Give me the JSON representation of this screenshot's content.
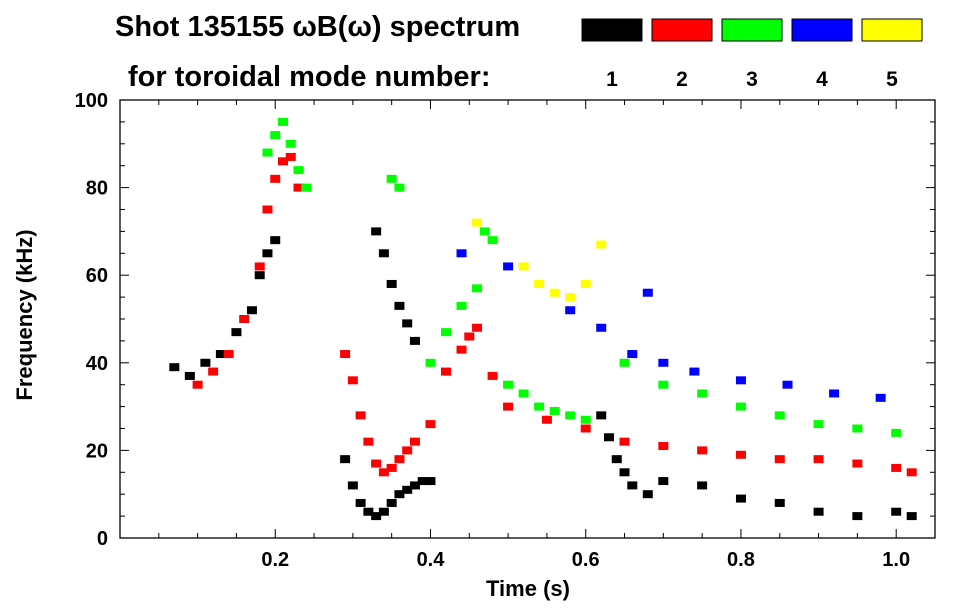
{
  "chart_data": {
    "type": "scatter",
    "title_line1": "Shot 135155 ωB(ω) spectrum",
    "title_line2": "for toroidal mode number:",
    "xlabel": "Time (s)",
    "ylabel": "Frequency (kHz)",
    "xlim": [
      0.0,
      1.05
    ],
    "ylim": [
      0,
      100
    ],
    "xticks": [
      0.2,
      0.4,
      0.6,
      0.8,
      1.0
    ],
    "xtick_labels": [
      "0.2",
      "0.4",
      "0.6",
      "0.8",
      "1.0"
    ],
    "yticks": [
      0,
      20,
      40,
      60,
      80,
      100
    ],
    "ytick_labels": [
      "0",
      "20",
      "40",
      "60",
      "80",
      "100"
    ],
    "legend_position": "top-right",
    "series": [
      {
        "name": "1",
        "color": "#000000",
        "x": [
          0.07,
          0.09,
          0.11,
          0.13,
          0.15,
          0.17,
          0.18,
          0.19,
          0.2,
          0.29,
          0.3,
          0.31,
          0.32,
          0.33,
          0.34,
          0.35,
          0.36,
          0.37,
          0.38,
          0.39,
          0.4,
          0.33,
          0.34,
          0.35,
          0.36,
          0.37,
          0.38,
          0.62,
          0.63,
          0.64,
          0.65,
          0.66,
          0.68,
          0.7,
          0.75,
          0.8,
          0.85,
          0.9,
          0.95,
          1.0,
          1.02
        ],
        "y": [
          39,
          37,
          40,
          42,
          47,
          52,
          60,
          65,
          68,
          18,
          12,
          8,
          6,
          5,
          6,
          8,
          10,
          11,
          12,
          13,
          13,
          70,
          65,
          58,
          53,
          49,
          45,
          28,
          23,
          18,
          15,
          12,
          10,
          13,
          12,
          9,
          8,
          6,
          5,
          6,
          5
        ]
      },
      {
        "name": "2",
        "color": "#ff0000",
        "x": [
          0.1,
          0.12,
          0.14,
          0.16,
          0.18,
          0.19,
          0.2,
          0.21,
          0.22,
          0.23,
          0.29,
          0.3,
          0.31,
          0.32,
          0.33,
          0.34,
          0.35,
          0.36,
          0.37,
          0.38,
          0.4,
          0.42,
          0.44,
          0.45,
          0.46,
          0.48,
          0.5,
          0.55,
          0.6,
          0.65,
          0.7,
          0.75,
          0.8,
          0.85,
          0.9,
          0.95,
          1.0,
          1.02
        ],
        "y": [
          35,
          38,
          42,
          50,
          62,
          75,
          82,
          86,
          87,
          80,
          42,
          36,
          28,
          22,
          17,
          15,
          16,
          18,
          20,
          22,
          26,
          38,
          43,
          46,
          48,
          37,
          30,
          27,
          25,
          22,
          21,
          20,
          19,
          18,
          18,
          17,
          16,
          15
        ]
      },
      {
        "name": "3",
        "color": "#00ff00",
        "x": [
          0.19,
          0.2,
          0.21,
          0.22,
          0.23,
          0.24,
          0.35,
          0.36,
          0.4,
          0.42,
          0.44,
          0.46,
          0.47,
          0.48,
          0.5,
          0.52,
          0.54,
          0.56,
          0.58,
          0.6,
          0.65,
          0.7,
          0.75,
          0.8,
          0.85,
          0.9,
          0.95,
          1.0
        ],
        "y": [
          88,
          92,
          95,
          90,
          84,
          80,
          82,
          80,
          40,
          47,
          53,
          57,
          70,
          68,
          35,
          33,
          30,
          29,
          28,
          27,
          40,
          35,
          33,
          30,
          28,
          26,
          25,
          24
        ]
      },
      {
        "name": "4",
        "color": "#0000ff",
        "x": [
          0.44,
          0.5,
          0.58,
          0.62,
          0.66,
          0.68,
          0.7,
          0.74,
          0.8,
          0.86,
          0.92,
          0.98
        ],
        "y": [
          65,
          62,
          52,
          48,
          42,
          56,
          40,
          38,
          36,
          35,
          33,
          32
        ]
      },
      {
        "name": "5",
        "color": "#ffff00",
        "x": [
          0.46,
          0.52,
          0.54,
          0.56,
          0.58,
          0.6,
          0.62
        ],
        "y": [
          72,
          62,
          58,
          56,
          55,
          58,
          67
        ]
      }
    ]
  }
}
